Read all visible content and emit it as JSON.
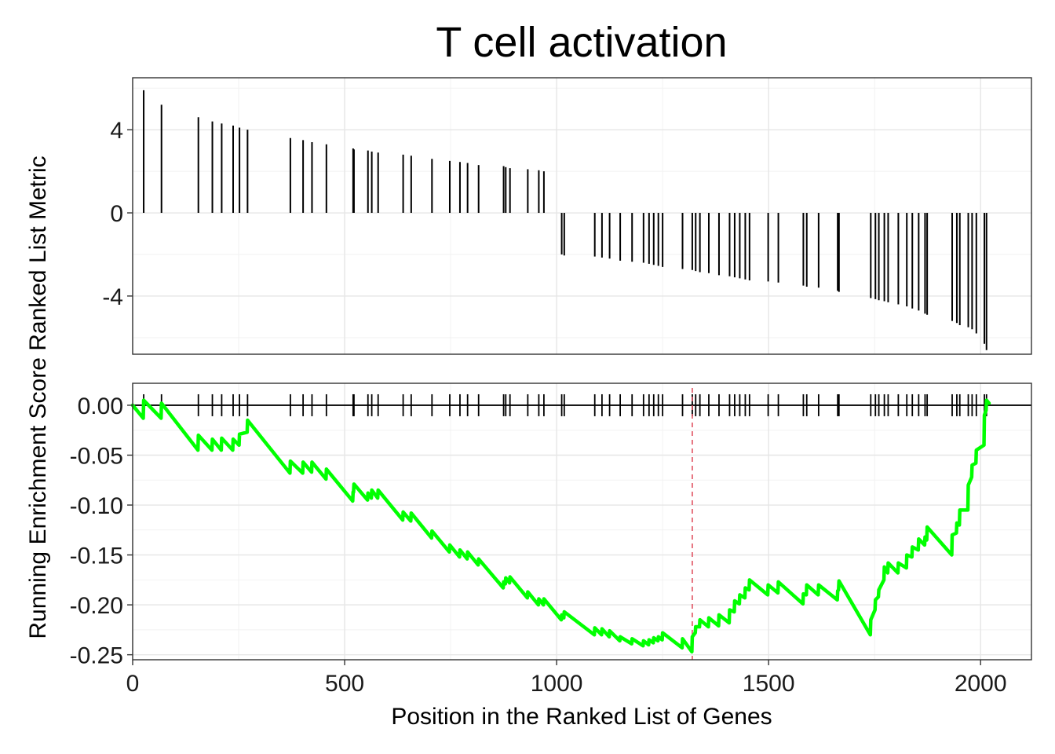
{
  "chart_data": {
    "type": "line",
    "title": "T cell activation",
    "xlabel": "Position in the Ranked List of Genes",
    "ylabel": "Running Enrichment Score Ranked List Metric",
    "xlim": [
      0,
      2120
    ],
    "x_ticks": [
      0,
      500,
      1000,
      1500,
      2000
    ],
    "gene_positions": [
      26,
      68,
      155,
      188,
      210,
      237,
      252,
      271,
      372,
      402,
      423,
      457,
      520,
      522,
      555,
      564,
      579,
      638,
      657,
      706,
      748,
      772,
      790,
      816,
      875,
      880,
      890,
      932,
      958,
      970,
      1012,
      1018,
      1090,
      1107,
      1125,
      1150,
      1178,
      1205,
      1218,
      1229,
      1240,
      1250,
      1297,
      1320,
      1328,
      1338,
      1359,
      1383,
      1408,
      1420,
      1432,
      1445,
      1455,
      1499,
      1523,
      1582,
      1590,
      1618,
      1663,
      1666,
      1741,
      1752,
      1760,
      1773,
      1782,
      1806,
      1826,
      1839,
      1854,
      1869,
      1874,
      1933,
      1944,
      1951,
      1971,
      1980,
      1990,
      2009,
      2014
    ],
    "ranked_metric": {
      "ylim": [
        -6.8,
        6.5
      ],
      "y_ticks": [
        -4,
        0,
        4
      ],
      "values": [
        5.9,
        5.2,
        4.6,
        4.4,
        4.3,
        4.2,
        4.1,
        4.0,
        3.6,
        3.5,
        3.4,
        3.3,
        3.1,
        3.05,
        3.0,
        2.95,
        2.9,
        2.8,
        2.75,
        2.6,
        2.5,
        2.45,
        2.4,
        2.3,
        2.25,
        2.2,
        2.15,
        2.1,
        2.05,
        2.0,
        -2.0,
        -2.05,
        -2.1,
        -2.15,
        -2.2,
        -2.3,
        -2.35,
        -2.4,
        -2.45,
        -2.5,
        -2.55,
        -2.6,
        -2.7,
        -2.75,
        -2.8,
        -2.85,
        -2.9,
        -3.0,
        -3.05,
        -3.1,
        -3.15,
        -3.2,
        -3.25,
        -3.3,
        -3.35,
        -3.5,
        -3.55,
        -3.6,
        -3.75,
        -3.8,
        -4.1,
        -4.15,
        -4.2,
        -4.25,
        -4.3,
        -4.4,
        -4.5,
        -4.6,
        -4.7,
        -4.85,
        -4.9,
        -5.2,
        -5.3,
        -5.4,
        -5.5,
        -5.6,
        -5.8,
        -6.3,
        -6.6
      ]
    },
    "running_es": {
      "ylim": [
        -0.255,
        0.022
      ],
      "y_ticks": [
        0.0,
        -0.05,
        -0.1,
        -0.15,
        -0.2,
        -0.25
      ],
      "y_tick_labels": [
        "0.00",
        "-0.05",
        "-0.10",
        "-0.15",
        "-0.20",
        "-0.25"
      ],
      "line_color": "#00ff00",
      "points": [
        [
          0,
          0.0
        ],
        [
          25,
          -0.013
        ],
        [
          26,
          0.005
        ],
        [
          67,
          -0.013
        ],
        [
          68,
          0.002
        ],
        [
          154,
          -0.045
        ],
        [
          155,
          -0.03
        ],
        [
          187,
          -0.045
        ],
        [
          188,
          -0.034
        ],
        [
          209,
          -0.045
        ],
        [
          210,
          -0.033
        ],
        [
          236,
          -0.045
        ],
        [
          237,
          -0.034
        ],
        [
          251,
          -0.04
        ],
        [
          252,
          -0.029
        ],
        [
          270,
          -0.027
        ],
        [
          271,
          -0.015
        ],
        [
          371,
          -0.068
        ],
        [
          372,
          -0.056
        ],
        [
          401,
          -0.068
        ],
        [
          402,
          -0.057
        ],
        [
          422,
          -0.067
        ],
        [
          423,
          -0.057
        ],
        [
          456,
          -0.074
        ],
        [
          457,
          -0.064
        ],
        [
          519,
          -0.096
        ],
        [
          520,
          -0.087
        ],
        [
          521,
          -0.087
        ],
        [
          522,
          -0.079
        ],
        [
          554,
          -0.095
        ],
        [
          555,
          -0.088
        ],
        [
          563,
          -0.093
        ],
        [
          564,
          -0.085
        ],
        [
          578,
          -0.093
        ],
        [
          579,
          -0.085
        ],
        [
          637,
          -0.115
        ],
        [
          638,
          -0.107
        ],
        [
          656,
          -0.116
        ],
        [
          657,
          -0.108
        ],
        [
          705,
          -0.133
        ],
        [
          706,
          -0.126
        ],
        [
          747,
          -0.147
        ],
        [
          748,
          -0.14
        ],
        [
          771,
          -0.152
        ],
        [
          772,
          -0.145
        ],
        [
          789,
          -0.154
        ],
        [
          790,
          -0.147
        ],
        [
          815,
          -0.16
        ],
        [
          816,
          -0.154
        ],
        [
          874,
          -0.183
        ],
        [
          875,
          -0.177
        ],
        [
          879,
          -0.179
        ],
        [
          880,
          -0.173
        ],
        [
          889,
          -0.178
        ],
        [
          890,
          -0.172
        ],
        [
          931,
          -0.193
        ],
        [
          932,
          -0.187
        ],
        [
          957,
          -0.2
        ],
        [
          958,
          -0.194
        ],
        [
          969,
          -0.2
        ],
        [
          970,
          -0.194
        ],
        [
          1011,
          -0.215
        ],
        [
          1012,
          -0.21
        ],
        [
          1017,
          -0.213
        ],
        [
          1018,
          -0.207
        ],
        [
          1089,
          -0.23
        ],
        [
          1090,
          -0.223
        ],
        [
          1106,
          -0.23
        ],
        [
          1107,
          -0.224
        ],
        [
          1124,
          -0.232
        ],
        [
          1125,
          -0.226
        ],
        [
          1149,
          -0.236
        ],
        [
          1150,
          -0.232
        ],
        [
          1177,
          -0.239
        ],
        [
          1178,
          -0.234
        ],
        [
          1204,
          -0.241
        ],
        [
          1205,
          -0.236
        ],
        [
          1217,
          -0.24
        ],
        [
          1218,
          -0.235
        ],
        [
          1228,
          -0.238
        ],
        [
          1229,
          -0.233
        ],
        [
          1239,
          -0.236
        ],
        [
          1240,
          -0.232
        ],
        [
          1249,
          -0.235
        ],
        [
          1250,
          -0.228
        ],
        [
          1296,
          -0.243
        ],
        [
          1297,
          -0.234
        ],
        [
          1319,
          -0.247
        ],
        [
          1320,
          -0.232
        ],
        [
          1327,
          -0.228
        ],
        [
          1328,
          -0.222
        ],
        [
          1337,
          -0.222
        ],
        [
          1338,
          -0.215
        ],
        [
          1358,
          -0.222
        ],
        [
          1359,
          -0.213
        ],
        [
          1382,
          -0.221
        ],
        [
          1383,
          -0.21
        ],
        [
          1407,
          -0.218
        ],
        [
          1408,
          -0.205
        ],
        [
          1419,
          -0.207
        ],
        [
          1420,
          -0.196
        ],
        [
          1431,
          -0.199
        ],
        [
          1432,
          -0.19
        ],
        [
          1444,
          -0.193
        ],
        [
          1445,
          -0.183
        ],
        [
          1454,
          -0.185
        ],
        [
          1455,
          -0.175
        ],
        [
          1498,
          -0.19
        ],
        [
          1499,
          -0.18
        ],
        [
          1522,
          -0.188
        ],
        [
          1523,
          -0.177
        ],
        [
          1581,
          -0.199
        ],
        [
          1582,
          -0.189
        ],
        [
          1589,
          -0.19
        ],
        [
          1590,
          -0.18
        ],
        [
          1617,
          -0.19
        ],
        [
          1618,
          -0.18
        ],
        [
          1662,
          -0.195
        ],
        [
          1663,
          -0.186
        ],
        [
          1665,
          -0.185
        ],
        [
          1666,
          -0.176
        ],
        [
          1740,
          -0.23
        ],
        [
          1741,
          -0.215
        ],
        [
          1751,
          -0.205
        ],
        [
          1752,
          -0.195
        ],
        [
          1759,
          -0.192
        ],
        [
          1760,
          -0.185
        ],
        [
          1772,
          -0.175
        ],
        [
          1773,
          -0.162
        ],
        [
          1781,
          -0.168
        ],
        [
          1782,
          -0.158
        ],
        [
          1805,
          -0.168
        ],
        [
          1806,
          -0.158
        ],
        [
          1825,
          -0.163
        ],
        [
          1826,
          -0.15
        ],
        [
          1838,
          -0.152
        ],
        [
          1839,
          -0.142
        ],
        [
          1853,
          -0.145
        ],
        [
          1854,
          -0.134
        ],
        [
          1868,
          -0.14
        ],
        [
          1869,
          -0.132
        ],
        [
          1873,
          -0.135
        ],
        [
          1874,
          -0.122
        ],
        [
          1932,
          -0.15
        ],
        [
          1933,
          -0.13
        ],
        [
          1943,
          -0.128
        ],
        [
          1944,
          -0.118
        ],
        [
          1950,
          -0.12
        ],
        [
          1951,
          -0.105
        ],
        [
          1970,
          -0.105
        ],
        [
          1971,
          -0.08
        ],
        [
          1979,
          -0.072
        ],
        [
          1980,
          -0.06
        ],
        [
          1989,
          -0.058
        ],
        [
          1990,
          -0.045
        ],
        [
          2008,
          -0.04
        ],
        [
          2009,
          -0.01
        ],
        [
          2013,
          -0.005
        ],
        [
          2014,
          0.005
        ],
        [
          2020,
          0.002
        ]
      ],
      "max_deviation_position": 1320,
      "max_deviation_line_color": "#e05060"
    },
    "grid": true,
    "legend": "none"
  }
}
